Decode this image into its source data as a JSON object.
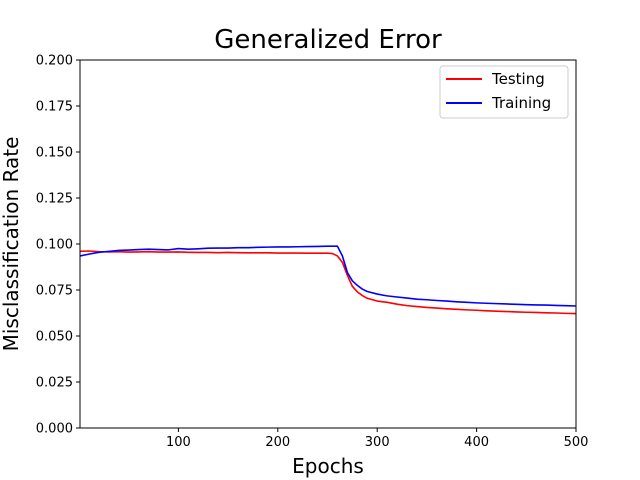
{
  "chart_data": {
    "type": "line",
    "title": "Generalized Error",
    "xlabel": "Epochs",
    "ylabel": "Misclassification Rate",
    "xlim": [
      1,
      500
    ],
    "ylim": [
      0,
      0.2
    ],
    "xticks": [
      100,
      200,
      300,
      400,
      500
    ],
    "xtick_labels": [
      "100",
      "200",
      "300",
      "400",
      "500"
    ],
    "yticks": [
      0,
      0.025,
      0.05,
      0.075,
      0.1,
      0.125,
      0.15,
      0.175,
      0.2
    ],
    "ytick_labels": [
      "0.000",
      "0.025",
      "0.050",
      "0.075",
      "0.100",
      "0.125",
      "0.150",
      "0.175",
      "0.200"
    ],
    "grid": false,
    "legend_position": "top-right",
    "series": [
      {
        "name": "Testing",
        "color": "#ff0000",
        "x": [
          1,
          10,
          20,
          30,
          40,
          50,
          60,
          70,
          80,
          90,
          100,
          110,
          120,
          130,
          140,
          150,
          160,
          170,
          180,
          190,
          200,
          210,
          220,
          230,
          240,
          250,
          255,
          260,
          265,
          270,
          275,
          280,
          285,
          290,
          300,
          310,
          320,
          330,
          340,
          350,
          360,
          370,
          380,
          390,
          400,
          410,
          420,
          430,
          440,
          450,
          460,
          470,
          480,
          490,
          500
        ],
        "y": [
          0.096,
          0.0962,
          0.0958,
          0.0957,
          0.0958,
          0.0956,
          0.0957,
          0.0958,
          0.0956,
          0.0956,
          0.0957,
          0.0955,
          0.0954,
          0.0954,
          0.0953,
          0.0954,
          0.0953,
          0.0952,
          0.0952,
          0.0952,
          0.0951,
          0.0951,
          0.0951,
          0.095,
          0.095,
          0.095,
          0.0948,
          0.0935,
          0.09,
          0.083,
          0.077,
          0.074,
          0.072,
          0.0705,
          0.069,
          0.0683,
          0.0673,
          0.0665,
          0.066,
          0.0655,
          0.0652,
          0.0648,
          0.0645,
          0.0642,
          0.064,
          0.0637,
          0.0635,
          0.0633,
          0.0631,
          0.0629,
          0.0628,
          0.0626,
          0.0625,
          0.0623,
          0.0622
        ]
      },
      {
        "name": "Training",
        "color": "#0000ff",
        "x": [
          1,
          10,
          20,
          30,
          40,
          50,
          60,
          70,
          80,
          90,
          100,
          110,
          120,
          130,
          140,
          150,
          160,
          170,
          180,
          190,
          200,
          210,
          220,
          230,
          240,
          250,
          255,
          260,
          265,
          270,
          275,
          280,
          285,
          290,
          300,
          310,
          320,
          330,
          340,
          350,
          360,
          370,
          380,
          390,
          400,
          410,
          420,
          430,
          440,
          450,
          460,
          470,
          480,
          490,
          500
        ],
        "y": [
          0.0935,
          0.0945,
          0.0955,
          0.096,
          0.0965,
          0.0967,
          0.097,
          0.0972,
          0.097,
          0.0968,
          0.0975,
          0.0972,
          0.0974,
          0.0977,
          0.0978,
          0.0978,
          0.098,
          0.098,
          0.0982,
          0.0983,
          0.0984,
          0.0984,
          0.0985,
          0.0986,
          0.0987,
          0.0988,
          0.0988,
          0.0988,
          0.0935,
          0.0845,
          0.08,
          0.0775,
          0.0755,
          0.0742,
          0.0728,
          0.0718,
          0.0712,
          0.0706,
          0.07,
          0.0697,
          0.0693,
          0.069,
          0.0686,
          0.0683,
          0.068,
          0.0678,
          0.0676,
          0.0674,
          0.0672,
          0.067,
          0.0669,
          0.0668,
          0.0666,
          0.0665,
          0.0663
        ]
      }
    ]
  }
}
